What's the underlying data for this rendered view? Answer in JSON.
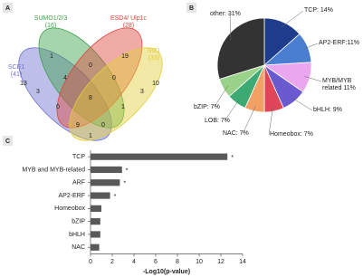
{
  "chart_data": [
    {
      "type": "venn",
      "panel": "A",
      "sets": [
        {
          "name": "SCE1",
          "size_label": "(41)",
          "color": "#6f6fd0"
        },
        {
          "name": "SUMO1/2/3",
          "size_label": "(16)",
          "color": "#3aa24a"
        },
        {
          "name": "ESD4/ Ulp1c",
          "size_label": "(28)",
          "color": "#e0453c"
        },
        {
          "name": "SIZ1",
          "size_label": "(33)",
          "color": "#e2cf3a"
        }
      ],
      "regions": [
        13,
        1,
        19,
        10,
        0,
        3,
        4,
        0,
        3,
        8,
        0,
        1,
        1,
        9,
        0
      ]
    },
    {
      "type": "pie",
      "panel": "B",
      "values": [
        14,
        11,
        11,
        9,
        7,
        7,
        7,
        7,
        31
      ],
      "value_labels": [
        "TCP: 14%",
        "AP2-ERF:11%",
        "MYB/MYB related 11%",
        "bHLH: 9%",
        "Homeobox: 7%",
        "NAC: 7%",
        "LOB: 7%",
        "bZIP: 7%",
        "other: 31%"
      ],
      "colors": [
        "#1f3c8c",
        "#4a7ed0",
        "#eaa6ee",
        "#6a5ad0",
        "#e0455a",
        "#f2a064",
        "#3caa72",
        "#9ad28a",
        "#333333"
      ]
    },
    {
      "type": "bar",
      "panel": "C",
      "orientation": "horizontal",
      "categories": [
        "TCP",
        "MYB and MYB-related",
        "ARF",
        "AP2-ERF",
        "Homeobox",
        "bZIP",
        "bHLH",
        "NAC"
      ],
      "values": [
        12.6,
        2.9,
        2.7,
        1.8,
        1.0,
        0.9,
        0.9,
        0.8
      ],
      "significance": [
        "*",
        "*",
        "*",
        "*",
        null,
        null,
        null,
        null
      ],
      "color": "#595959",
      "xlim": [
        0,
        14
      ],
      "xticks": [
        0,
        2,
        4,
        6,
        8,
        10,
        12,
        14
      ],
      "xlabel": "-Log10(p-value)"
    }
  ]
}
